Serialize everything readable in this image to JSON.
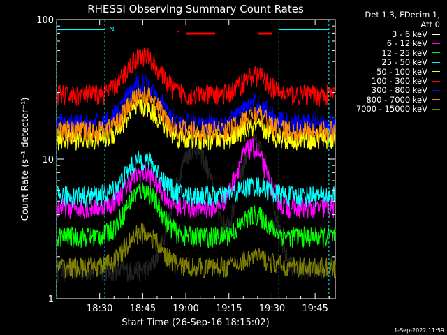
{
  "chart_data": {
    "type": "line",
    "title": "RHESSI Observing Summary Count Rates",
    "xlabel": "Start Time (26-Sep-16 18:15:02)",
    "ylabel": "Count Rate (s⁻¹ detector⁻¹)",
    "yscale": "log",
    "ylim": [
      1,
      100
    ],
    "xlim_minutes": [
      18.25,
      19.867
    ],
    "x_ticks": [
      "18:30",
      "18:45",
      "19:00",
      "19:15",
      "19:30",
      "19:45"
    ],
    "y_ticks": [
      "1",
      "10",
      "100"
    ],
    "flags": {
      "night_label": "N",
      "flare_label": "F",
      "night_intervals": [
        [
          18.25,
          18.53
        ],
        [
          19.54,
          19.83
        ]
      ],
      "flare_intervals": [
        [
          19.0,
          19.17
        ],
        [
          19.42,
          19.5
        ]
      ]
    },
    "series": [
      {
        "name": "3 - 6 keV",
        "color": "#000000",
        "base": 1.6,
        "peak": 12,
        "peak_time": 19.05,
        "second_peak": 13,
        "second_time": 19.4
      },
      {
        "name": "6 - 12 keV",
        "color": "#ff00ff",
        "base": 4.5,
        "peak": 8,
        "peak_time": 18.75,
        "second_peak": 12,
        "second_time": 19.38
      },
      {
        "name": "12 - 25 keV",
        "color": "#00ff00",
        "base": 2.8,
        "peak": 6,
        "peak_time": 18.75,
        "second_peak": 4,
        "second_time": 19.4
      },
      {
        "name": "25 - 50 keV",
        "color": "#00ffff",
        "base": 5.5,
        "peak": 10,
        "peak_time": 18.75,
        "second_peak": 6.5,
        "second_time": 19.4
      },
      {
        "name": "50 - 100 keV",
        "color": "#ffff00",
        "base": 14,
        "peak": 24,
        "peak_time": 18.75,
        "second_peak": 17,
        "second_time": 19.4
      },
      {
        "name": "100 - 300 keV",
        "color": "#ff0000",
        "base": 29,
        "peak": 55,
        "peak_time": 18.75,
        "second_peak": 40,
        "second_time": 19.4
      },
      {
        "name": "300 - 800 keV",
        "color": "#0000ff",
        "base": 18,
        "peak": 35,
        "peak_time": 18.75,
        "second_peak": 25,
        "second_time": 19.4
      },
      {
        "name": "800 - 7000 keV",
        "color": "#ff8c00",
        "base": 16,
        "peak": 29,
        "peak_time": 18.75,
        "second_peak": 21,
        "second_time": 19.4
      },
      {
        "name": "7000 - 15000 keV",
        "color": "#808000",
        "base": 1.7,
        "peak": 3,
        "peak_time": 18.75,
        "second_peak": 2,
        "second_time": 19.4
      }
    ]
  },
  "legend": {
    "header_line1": "Det 1,3, FDecim 1,",
    "header_line2": "Att 0"
  },
  "footer": {
    "date": "1-Sep-2022 11:59"
  }
}
